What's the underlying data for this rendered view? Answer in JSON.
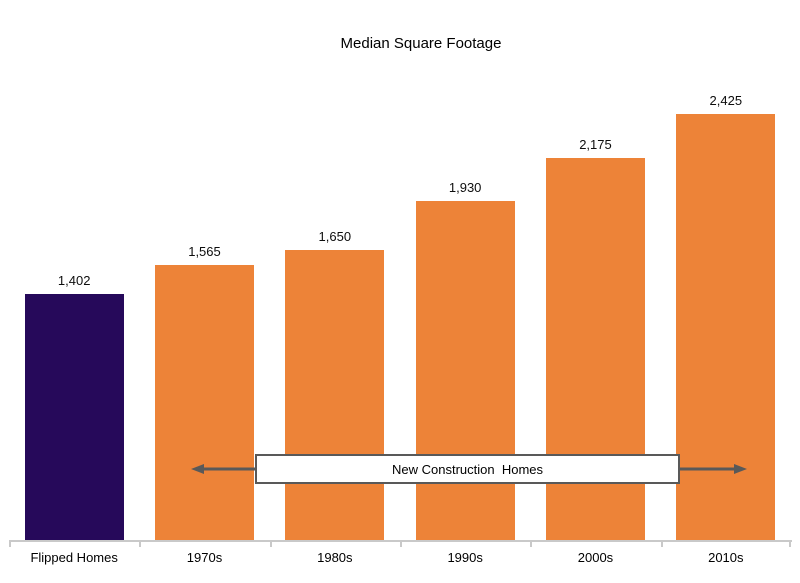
{
  "chart_data": {
    "type": "bar",
    "title": "Median Square Footage",
    "categories": [
      "Flipped Homes",
      "1970s",
      "1980s",
      "1990s",
      "2000s",
      "2010s"
    ],
    "values": [
      1402,
      1565,
      1650,
      1930,
      2175,
      2425
    ],
    "value_labels": [
      "1,402",
      "1,565",
      "1,650",
      "1,930",
      "2,175",
      "2,425"
    ],
    "bar_colors": [
      "#26095A",
      "#ED8338",
      "#ED8338",
      "#ED8338",
      "#ED8338",
      "#ED8338"
    ],
    "xlabel": "",
    "ylabel": "",
    "ylim": [
      0,
      2500
    ],
    "grid": false,
    "legend": false,
    "data_labels": true,
    "annotation": {
      "text": "New Construction  Homes",
      "applies_to": [
        "1970s",
        "1980s",
        "1990s",
        "2000s",
        "2010s"
      ]
    },
    "colors": {
      "flipped_homes_bar": "#26095A",
      "new_construction_bar": "#ED8338",
      "annotation_border": "#595959",
      "arrow": "#595959",
      "axis_line": "#C9C9C9",
      "text": "#000000"
    }
  }
}
